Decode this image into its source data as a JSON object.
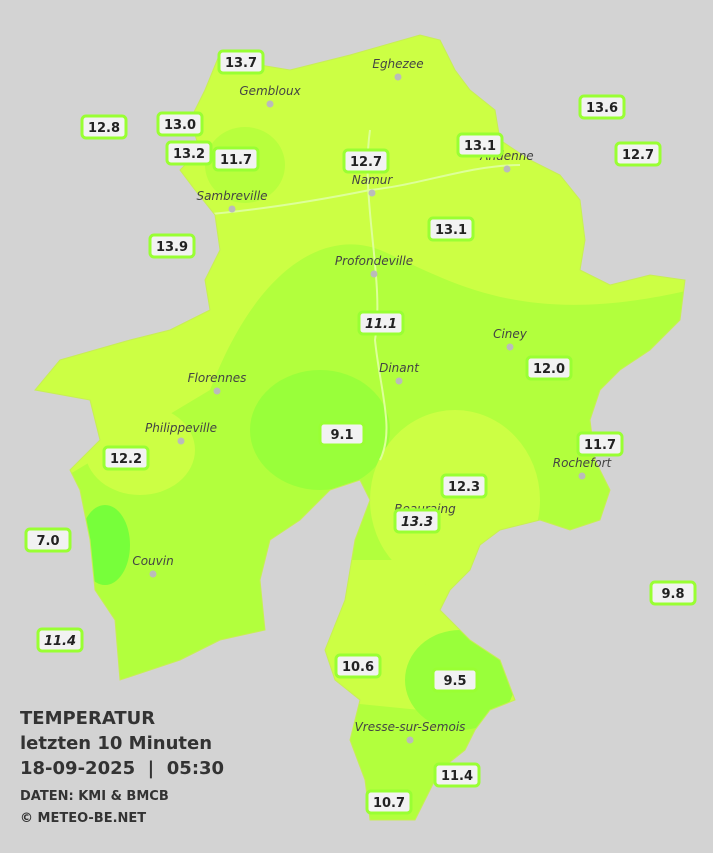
{
  "title": "TEMPERATUR",
  "subtitle": "letzten 10 Minuten",
  "datetime": "18-09-2025  |  05:30",
  "source": "DATEN: KMI & BMCB",
  "copyright": "© METEO-BE.NET",
  "cities": [
    "Eghezee",
    "Gembloux",
    "Andenne",
    "Namur",
    "Sambreville",
    "Profondeville",
    "Ciney",
    "Dinant",
    "Florennes",
    "Philippeville",
    "Rochefort",
    "Beauraing",
    "Couvin",
    "Vresse-sur-Semois"
  ],
  "stations": [
    "13.7",
    "12.8",
    "13.0",
    "13.2",
    "11.7",
    "12.7",
    "13.1",
    "13.6",
    "12.7",
    "13.9",
    "13.1",
    "11.1",
    "12.0",
    "9.1",
    "11.7",
    "12.2",
    "12.3",
    "13.3",
    "7.0",
    "9.8",
    "11.4",
    "10.6",
    "9.5",
    "11.4",
    "10.7"
  ]
}
